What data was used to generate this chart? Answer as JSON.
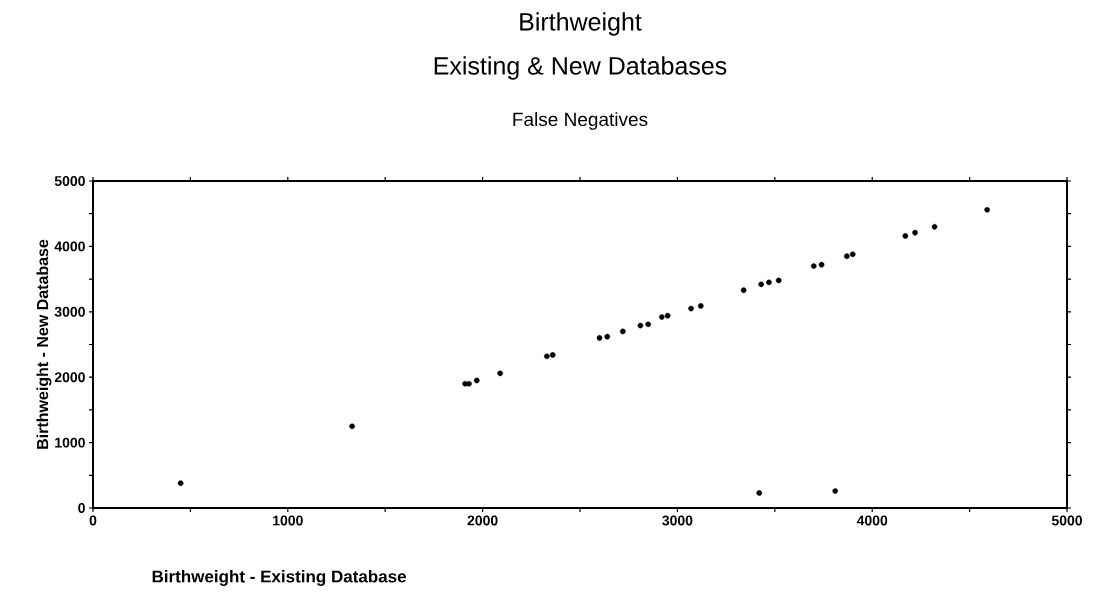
{
  "chart_data": {
    "type": "scatter",
    "title": "Birthweight",
    "subtitle": "Existing & New Databases",
    "annotations": [
      "False Negatives"
    ],
    "xlabel": "Birthweight - Existing Database",
    "ylabel": "Birthweight - New Database",
    "x": [
      450,
      1330,
      1910,
      1930,
      1970,
      2090,
      2330,
      2360,
      2600,
      2640,
      2720,
      2810,
      2850,
      2920,
      2950,
      3070,
      3120,
      3340,
      3430,
      3470,
      3520,
      3700,
      3740,
      3870,
      3900,
      4170,
      4220,
      4320,
      4590,
      3420,
      3810
    ],
    "values": [
      380,
      1250,
      1900,
      1900,
      1950,
      2060,
      2320,
      2340,
      2600,
      2620,
      2700,
      2790,
      2810,
      2920,
      2940,
      3050,
      3090,
      3330,
      3420,
      3450,
      3480,
      3700,
      3720,
      3850,
      3880,
      4160,
      4210,
      4300,
      4560,
      230,
      260
    ],
    "color": "#000000",
    "marker": "circle",
    "xlim": [
      0,
      5000
    ],
    "ylim": [
      0,
      5000
    ],
    "xticks": [
      0,
      {
        "value": 500,
        "label": null
      },
      1000,
      {
        "value": 1500,
        "label": null
      },
      2000,
      {
        "value": 2500,
        "label": null
      },
      3000,
      {
        "value": 3500,
        "label": null
      },
      4000,
      {
        "value": 4500,
        "label": null
      },
      5000
    ],
    "yticks": [
      0,
      {
        "value": 500,
        "label": null
      },
      1000,
      {
        "value": 1500,
        "label": null
      },
      2000,
      {
        "value": 2500,
        "label": null
      },
      3000,
      {
        "value": 3500,
        "label": null
      },
      4000,
      {
        "value": 4500,
        "label": null
      },
      5000
    ]
  }
}
